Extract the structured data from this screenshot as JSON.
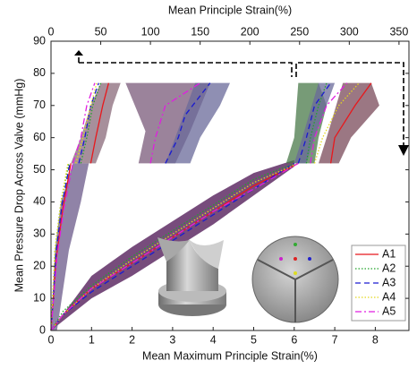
{
  "chart_data": {
    "type": "line",
    "x2label": "Mean Principle Strain(%)",
    "xlabel": "Mean Maximum Principle Strain(%)",
    "ylabel": "Mean Pressure Drop Across Valve (mmHg)",
    "xlim": [
      0,
      8.83
    ],
    "xticks": [
      0,
      1,
      2,
      3,
      4,
      5,
      6,
      7,
      8
    ],
    "x2lim": [
      0,
      360
    ],
    "x2ticks": [
      0,
      50,
      100,
      150,
      200,
      250,
      300,
      350
    ],
    "ylim": [
      0,
      90
    ],
    "yticks": [
      0,
      10,
      20,
      30,
      40,
      50,
      60,
      70,
      80,
      90
    ],
    "legend": "lower right",
    "bands": [
      {
        "axis": "x",
        "color": "#4a1050",
        "x": [
          0,
          1,
          2,
          3,
          4,
          5,
          6,
          6,
          5,
          4,
          3,
          2,
          1,
          0
        ],
        "y": [
          0,
          17,
          26,
          34,
          42,
          49,
          53,
          51,
          42,
          33,
          25,
          17,
          10,
          0
        ]
      },
      {
        "axis": "x2",
        "color": "#6b5a8a",
        "x": [
          0,
          4,
          10,
          22,
          38,
          30,
          18,
          6
        ],
        "y": [
          0,
          25,
          40,
          52,
          52,
          40,
          25,
          0
        ]
      },
      {
        "axis": "x2",
        "color": "#8a6a7a",
        "x": [
          20,
          30,
          40,
          50,
          70,
          62,
          55,
          45
        ],
        "y": [
          52,
          60,
          70,
          77,
          77,
          70,
          60,
          52
        ]
      },
      {
        "axis": "x2",
        "color": "#7a5a7a",
        "x": [
          88,
          95,
          75,
          160,
          140,
          125
        ],
        "y": [
          52,
          62,
          77,
          77,
          62,
          52
        ]
      },
      {
        "axis": "x2",
        "color": "#6a6a9a",
        "x": [
          115,
          125,
          145,
          180,
          170,
          150,
          140
        ],
        "y": [
          52,
          60,
          77,
          77,
          70,
          60,
          52
        ]
      },
      {
        "axis": "x",
        "color": "#4a7a4a",
        "x": [
          5.8,
          6.0,
          6.1,
          6.6,
          6.8,
          6.6,
          6.5
        ],
        "y": [
          52,
          60,
          77,
          77,
          70,
          60,
          52
        ]
      },
      {
        "axis": "x",
        "color": "#6a6a9a",
        "x": [
          6.0,
          6.2,
          6.6,
          7.0,
          6.8,
          6.5,
          6.3
        ],
        "y": [
          52,
          60,
          77,
          77,
          70,
          60,
          52
        ]
      },
      {
        "axis": "x",
        "color": "#7a4a5a",
        "x": [
          6.6,
          6.8,
          7.2,
          7.9,
          8.1,
          7.4,
          7.1
        ],
        "y": [
          52,
          60,
          77,
          77,
          70,
          60,
          52
        ]
      }
    ],
    "series": [
      {
        "name": "A1",
        "color": "#e8181c",
        "linestyle": "solid",
        "x": [
          0,
          0.3,
          1,
          2,
          3,
          4,
          5,
          6.1,
          null,
          6.9,
          7.0,
          7.5,
          7.9
        ],
        "values": [
          0,
          5,
          13,
          21,
          29,
          37,
          45,
          52,
          null,
          52,
          60,
          70,
          77
        ]
      },
      {
        "name": "A2",
        "color": "#21a32b",
        "linestyle": "dotted",
        "x": [
          0,
          0.3,
          1,
          2,
          3,
          4,
          5,
          6.0,
          null,
          6.3,
          6.4,
          6.6,
          6.8
        ],
        "values": [
          0,
          6,
          14,
          23,
          31,
          39,
          47,
          52,
          null,
          52,
          60,
          70,
          77
        ]
      },
      {
        "name": "A3",
        "color": "#1a1ad0",
        "linestyle": "dashed",
        "x": [
          0,
          0.3,
          1,
          2,
          3,
          4,
          5,
          6.0,
          null,
          6.1,
          6.3,
          6.5,
          6.9
        ],
        "values": [
          0,
          5,
          12,
          20,
          28,
          36,
          44,
          52,
          null,
          52,
          60,
          70,
          77
        ]
      },
      {
        "name": "A4",
        "color": "#e3d81e",
        "linestyle": "dotted",
        "x": [
          0,
          0.3,
          1,
          2,
          3,
          4,
          5,
          6.1,
          null,
          6.5,
          6.7,
          7.1,
          7.6
        ],
        "values": [
          0,
          5,
          13,
          22,
          30,
          38,
          46,
          52,
          null,
          52,
          60,
          70,
          77
        ]
      },
      {
        "name": "A5",
        "color": "#e01ee0",
        "linestyle": "dashdot",
        "x": [
          0,
          0.3,
          1,
          2,
          3,
          4,
          5,
          6.1,
          null,
          6.4,
          6.5,
          6.8,
          7.3
        ],
        "values": [
          0,
          5,
          13,
          21,
          29,
          37,
          44,
          52,
          null,
          52,
          60,
          70,
          77
        ]
      }
    ],
    "series_x2": [
      {
        "color": "#e8181c",
        "linestyle": "solid",
        "x": [
          0,
          5,
          12,
          20,
          null,
          40,
          45,
          52,
          58
        ],
        "values": [
          0,
          22,
          38,
          52,
          null,
          52,
          60,
          70,
          77
        ]
      },
      {
        "color": "#21a32b",
        "linestyle": "dotted",
        "x": [
          0,
          4,
          10,
          18,
          null,
          30,
          36,
          42,
          50
        ],
        "values": [
          0,
          25,
          40,
          52,
          null,
          52,
          60,
          70,
          77
        ]
      },
      {
        "color": "#1a1ad0",
        "linestyle": "dashed",
        "x": [
          0,
          5,
          11,
          19,
          null,
          28,
          34,
          40,
          48,
          null,
          115,
          128,
          135,
          160
        ],
        "values": [
          0,
          24,
          39,
          52,
          null,
          52,
          60,
          70,
          77,
          null,
          52,
          60,
          67,
          77
        ]
      },
      {
        "color": "#e3d81e",
        "linestyle": "dotted",
        "x": [
          0,
          4,
          10,
          17,
          null,
          25,
          32,
          40,
          46
        ],
        "values": [
          0,
          25,
          40,
          52,
          null,
          52,
          60,
          70,
          77
        ]
      },
      {
        "color": "#e01ee0",
        "linestyle": "dashdot",
        "x": [
          0,
          6,
          13,
          22,
          null,
          22,
          30,
          36,
          44,
          null,
          100,
          105,
          115,
          150
        ],
        "values": [
          0,
          23,
          38,
          52,
          null,
          52,
          60,
          70,
          77,
          null,
          52,
          60,
          70,
          77
        ]
      }
    ]
  }
}
